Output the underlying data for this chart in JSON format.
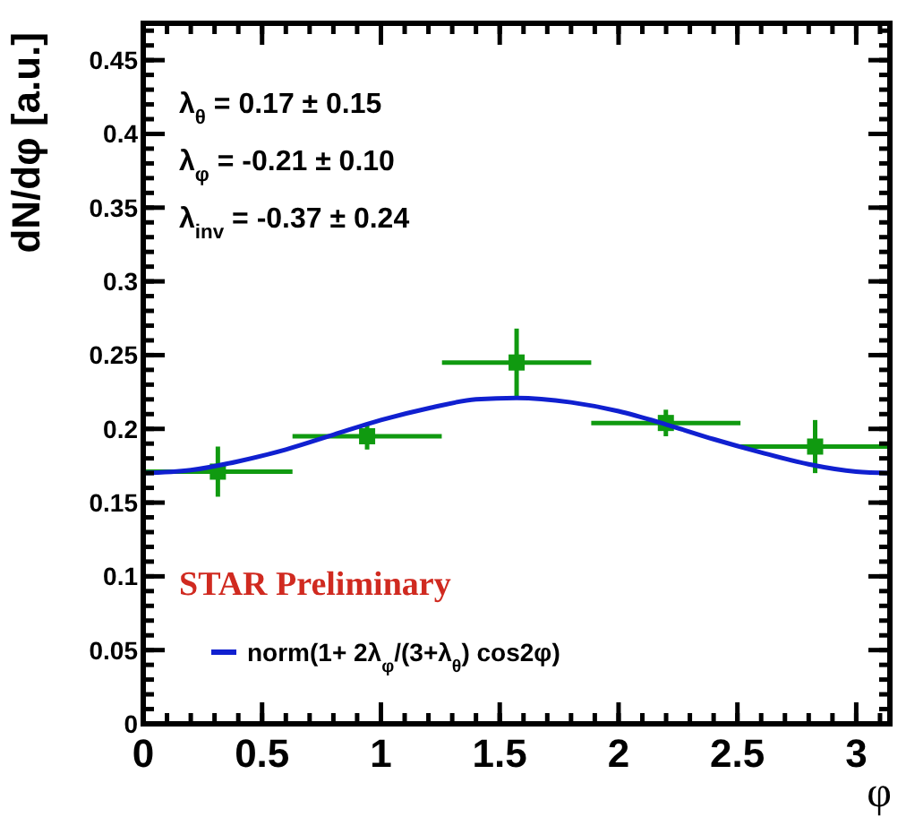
{
  "chart_data": {
    "type": "scatter",
    "xlabel": "φ",
    "ylabel": "dN/dφ [a.u.]",
    "xlim": [
      0,
      3.1416
    ],
    "ylim": [
      0,
      0.475
    ],
    "xticks": [
      0,
      0.5,
      1,
      1.5,
      2,
      2.5,
      3
    ],
    "yticks": [
      0,
      0.05,
      0.1,
      0.15,
      0.2,
      0.25,
      0.3,
      0.35,
      0.4,
      0.45
    ],
    "grid": false,
    "legend": "bottom left",
    "marker": "square",
    "annotations": [
      "λ$_{θ}$ = 0.17 ± 0.15",
      "λ$_{φ}$ = -0.21 ± 0.10",
      "λ$_{inv}$ = -0.37 ± 0.24",
      "STAR Preliminary"
    ],
    "series": [
      {
        "color": "#109a10",
        "x": [
          0.314,
          0.942,
          1.571,
          2.199,
          2.827
        ],
        "values": [
          0.171,
          0.195,
          0.245,
          0.204,
          0.188
        ],
        "errors": [
          0.017,
          0.009,
          0.023,
          0.009,
          0.018
        ],
        "xerrors": [
          0.314,
          0.314,
          0.314,
          0.314,
          0.314
        ]
      },
      {
        "type": "line",
        "name": "norm(1+ 2λ$_{φ}$/(3+λ$_{θ}$) cos2φ)",
        "color": "#1020d0",
        "line_style": "solid",
        "marker": "none",
        "x": [
          0,
          0.2,
          0.4,
          0.6,
          0.8,
          1.0,
          1.2,
          1.4,
          1.571,
          1.8,
          2.0,
          2.2,
          2.4,
          2.6,
          2.8,
          3.0,
          3.1416
        ],
        "values": [
          0.17,
          0.172,
          0.178,
          0.186,
          0.196,
          0.206,
          0.214,
          0.22,
          0.221,
          0.218,
          0.212,
          0.203,
          0.193,
          0.184,
          0.176,
          0.171,
          0.17
        ]
      }
    ]
  }
}
